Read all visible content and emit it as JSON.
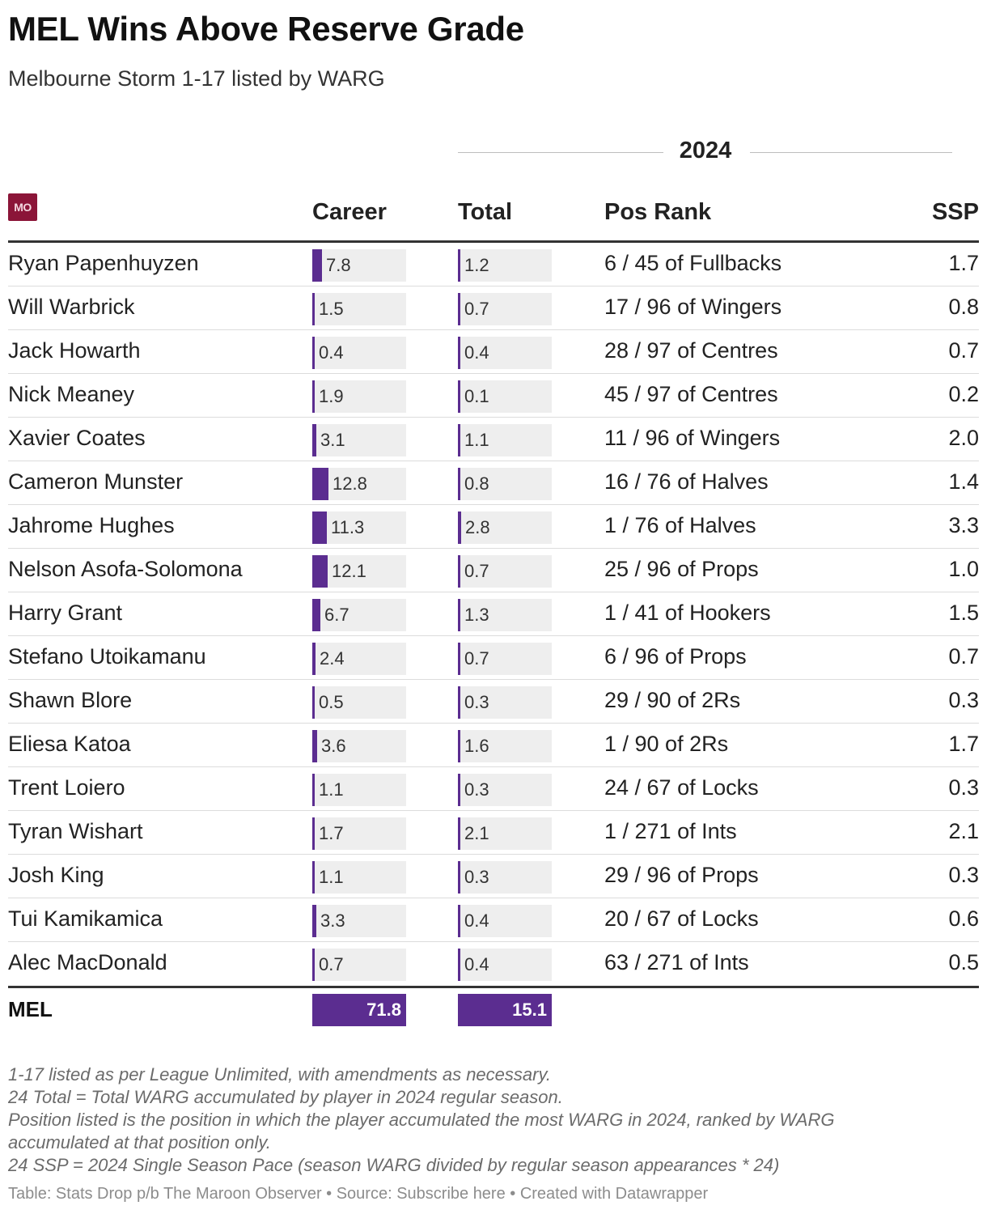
{
  "title": "MEL Wins Above Reserve Grade",
  "subtitle": "Melbourne Storm 1-17 listed by WARG",
  "logo_text": "MO",
  "group_label": "2024",
  "columns": {
    "name": "",
    "career": "Career",
    "total": "Total",
    "pos_rank": "Pos Rank",
    "ssp": "SSP"
  },
  "colors": {
    "bar": "#5b2d90",
    "track": "#eeeeee",
    "logo": "#8b1538"
  },
  "chart_data": {
    "type": "table",
    "bar_scale_max": 12.8,
    "rows": [
      {
        "name": "Ryan Papenhuyzen",
        "career": 7.8,
        "total": 1.2,
        "pos_rank": "6 / 45 of Fullbacks",
        "ssp": "1.7"
      },
      {
        "name": "Will Warbrick",
        "career": 1.5,
        "total": 0.7,
        "pos_rank": "17 / 96 of Wingers",
        "ssp": "0.8"
      },
      {
        "name": "Jack Howarth",
        "career": 0.4,
        "total": 0.4,
        "pos_rank": "28 / 97 of Centres",
        "ssp": "0.7"
      },
      {
        "name": "Nick Meaney",
        "career": 1.9,
        "total": 0.1,
        "pos_rank": "45 / 97 of Centres",
        "ssp": "0.2"
      },
      {
        "name": "Xavier Coates",
        "career": 3.1,
        "total": 1.1,
        "pos_rank": "11 / 96 of Wingers",
        "ssp": "2.0"
      },
      {
        "name": "Cameron Munster",
        "career": 12.8,
        "total": 0.8,
        "pos_rank": "16 / 76 of Halves",
        "ssp": "1.4"
      },
      {
        "name": "Jahrome Hughes",
        "career": 11.3,
        "total": 2.8,
        "pos_rank": "1 / 76 of Halves",
        "ssp": "3.3"
      },
      {
        "name": "Nelson Asofa-Solomona",
        "career": 12.1,
        "total": 0.7,
        "pos_rank": "25 / 96 of Props",
        "ssp": "1.0"
      },
      {
        "name": "Harry Grant",
        "career": 6.7,
        "total": 1.3,
        "pos_rank": "1 / 41 of Hookers",
        "ssp": "1.5"
      },
      {
        "name": "Stefano Utoikamanu",
        "career": 2.4,
        "total": 0.7,
        "pos_rank": "6 / 96 of Props",
        "ssp": "0.7"
      },
      {
        "name": "Shawn Blore",
        "career": 0.5,
        "total": 0.3,
        "pos_rank": "29 / 90 of 2Rs",
        "ssp": "0.3"
      },
      {
        "name": "Eliesa Katoa",
        "career": 3.6,
        "total": 1.6,
        "pos_rank": "1 / 90 of 2Rs",
        "ssp": "1.7"
      },
      {
        "name": "Trent Loiero",
        "career": 1.1,
        "total": 0.3,
        "pos_rank": "24 / 67 of Locks",
        "ssp": "0.3"
      },
      {
        "name": "Tyran Wishart",
        "career": 1.7,
        "total": 2.1,
        "pos_rank": "1 / 271 of Ints",
        "ssp": "2.1"
      },
      {
        "name": "Josh King",
        "career": 1.1,
        "total": 0.3,
        "pos_rank": "29 / 96 of Props",
        "ssp": "0.3"
      },
      {
        "name": "Tui Kamikamica",
        "career": 3.3,
        "total": 0.4,
        "pos_rank": "20 / 67 of Locks",
        "ssp": "0.6"
      },
      {
        "name": "Alec MacDonald",
        "career": 0.7,
        "total": 0.4,
        "pos_rank": "63 / 271 of Ints",
        "ssp": "0.5"
      }
    ],
    "totals": {
      "name": "MEL",
      "career": "71.8",
      "total": "15.1"
    }
  },
  "notes": [
    "1-17 listed as per League Unlimited, with amendments as necessary.",
    "24 Total = Total WARG accumulated by player in 2024 regular season.",
    "Position listed is the position in which the player accumulated the most WARG in 2024, ranked by WARG accumulated at that position only.",
    "24 SSP = 2024 Single Season Pace (season WARG divided by regular season appearances * 24)"
  ],
  "credit": "Table: Stats Drop p/b The Maroon Observer • Source: Subscribe here • Created with Datawrapper"
}
